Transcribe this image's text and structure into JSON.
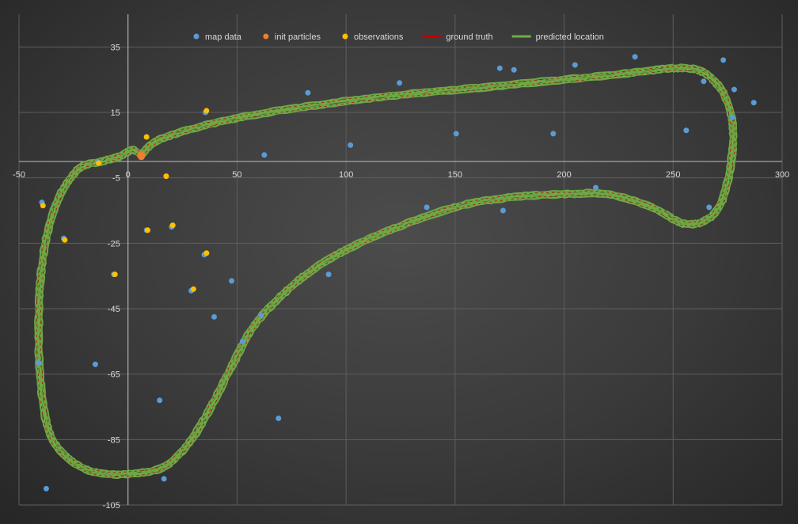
{
  "chart_data": {
    "type": "scatter",
    "title": "",
    "xlabel": "",
    "ylabel": "",
    "xlim": [
      -50,
      300
    ],
    "ylim": [
      -105,
      45
    ],
    "x_ticks": [
      -50,
      0,
      50,
      100,
      150,
      200,
      250,
      300
    ],
    "y_ticks": [
      35,
      15,
      -5,
      -25,
      -45,
      -65,
      -85,
      -105
    ],
    "grid": true,
    "legend_position": "top",
    "series": [
      {
        "name": "map data",
        "kind": "scatter",
        "color": "#5b9bd5",
        "points": [
          [
            -37.5,
            -100.0
          ],
          [
            -41.0,
            -61.5
          ],
          [
            -15.0,
            -62.0
          ],
          [
            -39.5,
            -12.5
          ],
          [
            -29.5,
            -23.5
          ],
          [
            -6.5,
            -34.5
          ],
          [
            8.5,
            -21.0
          ],
          [
            20.0,
            -20.0
          ],
          [
            14.5,
            -73.0
          ],
          [
            16.5,
            -97.0
          ],
          [
            29.0,
            -39.5
          ],
          [
            35.0,
            -28.5
          ],
          [
            39.5,
            -47.5
          ],
          [
            47.5,
            -36.5
          ],
          [
            52.5,
            -55.0
          ],
          [
            61.0,
            -47.0
          ],
          [
            62.5,
            2.0
          ],
          [
            69.0,
            -78.5
          ],
          [
            35.5,
            15.0
          ],
          [
            82.5,
            21.0
          ],
          [
            102.0,
            5.0
          ],
          [
            92.0,
            -34.5
          ],
          [
            124.5,
            24.0
          ],
          [
            137.0,
            -14.0
          ],
          [
            150.5,
            8.5
          ],
          [
            170.5,
            28.5
          ],
          [
            172.0,
            -15.0
          ],
          [
            177.0,
            28.0
          ],
          [
            195.0,
            8.5
          ],
          [
            205.0,
            29.5
          ],
          [
            214.5,
            -8.0
          ],
          [
            232.5,
            32.0
          ],
          [
            256.0,
            9.5
          ],
          [
            264.0,
            24.5
          ],
          [
            266.5,
            -14.0
          ],
          [
            273.0,
            31.0
          ],
          [
            277.0,
            13.5
          ],
          [
            278.0,
            22.0
          ],
          [
            287.0,
            18.0
          ],
          [
            -14.0,
            0.0
          ]
        ]
      },
      {
        "name": "init particles",
        "kind": "scatter",
        "color": "#ed7d31",
        "points": [
          [
            6.0,
            2.0
          ],
          [
            6.3,
            1.8
          ],
          [
            6.1,
            1.5
          ]
        ]
      },
      {
        "name": "observations",
        "kind": "scatter",
        "color": "#ffc000",
        "points": [
          [
            -39.0,
            -13.5
          ],
          [
            -29.0,
            -24.0
          ],
          [
            -13.5,
            -0.5
          ],
          [
            -6.0,
            -34.5
          ],
          [
            8.5,
            7.5
          ],
          [
            9.0,
            -21.0
          ],
          [
            20.5,
            -19.5
          ],
          [
            17.5,
            -4.5
          ],
          [
            30.0,
            -39.0
          ],
          [
            36.0,
            -28.0
          ],
          [
            36.0,
            15.5
          ]
        ]
      },
      {
        "name": "ground truth",
        "kind": "line",
        "color": "#c00000",
        "points": [
          [
            6.0,
            2.0
          ],
          [
            14.0,
            6.5
          ],
          [
            35.0,
            11.0
          ],
          [
            60.0,
            14.5
          ],
          [
            90.0,
            17.5
          ],
          [
            120.0,
            20.0
          ],
          [
            160.0,
            22.5
          ],
          [
            200.0,
            25.0
          ],
          [
            230.0,
            27.0
          ],
          [
            250.0,
            28.5
          ],
          [
            263.0,
            27.5
          ],
          [
            272.0,
            22.0
          ],
          [
            277.0,
            13.0
          ],
          [
            277.0,
            2.0
          ],
          [
            273.0,
            -11.0
          ],
          [
            266.0,
            -17.5
          ],
          [
            255.0,
            -19.0
          ],
          [
            240.0,
            -14.0
          ],
          [
            220.0,
            -10.0
          ],
          [
            200.0,
            -10.0
          ],
          [
            175.0,
            -11.0
          ],
          [
            150.0,
            -14.0
          ],
          [
            120.0,
            -21.0
          ],
          [
            100.0,
            -27.0
          ],
          [
            85.0,
            -33.0
          ],
          [
            72.0,
            -40.0
          ],
          [
            58.0,
            -50.0
          ],
          [
            48.0,
            -62.0
          ],
          [
            38.0,
            -75.0
          ],
          [
            28.0,
            -86.0
          ],
          [
            16.0,
            -93.5
          ],
          [
            0.0,
            -95.5
          ],
          [
            -15.0,
            -95.0
          ],
          [
            -27.0,
            -91.0
          ],
          [
            -36.0,
            -83.0
          ],
          [
            -40.0,
            -68.0
          ],
          [
            -41.0,
            -50.0
          ],
          [
            -40.0,
            -35.0
          ],
          [
            -37.0,
            -22.0
          ],
          [
            -31.0,
            -10.0
          ],
          [
            -22.0,
            -2.0
          ],
          [
            -12.0,
            0.0
          ],
          [
            -4.0,
            1.5
          ],
          [
            2.0,
            3.5
          ],
          [
            6.0,
            2.0
          ]
        ]
      },
      {
        "name": "predicted location",
        "kind": "line",
        "color": "#70ad47",
        "points": [
          [
            6.0,
            2.0
          ],
          [
            14.0,
            6.5
          ],
          [
            35.0,
            11.0
          ],
          [
            60.0,
            14.5
          ],
          [
            90.0,
            17.5
          ],
          [
            120.0,
            20.0
          ],
          [
            160.0,
            22.5
          ],
          [
            200.0,
            25.0
          ],
          [
            230.0,
            27.0
          ],
          [
            250.0,
            28.5
          ],
          [
            263.0,
            27.5
          ],
          [
            272.0,
            22.0
          ],
          [
            277.0,
            13.0
          ],
          [
            277.0,
            2.0
          ],
          [
            273.0,
            -11.0
          ],
          [
            266.0,
            -17.5
          ],
          [
            255.0,
            -19.0
          ],
          [
            240.0,
            -14.0
          ],
          [
            220.0,
            -10.0
          ],
          [
            200.0,
            -10.0
          ],
          [
            175.0,
            -11.0
          ],
          [
            150.0,
            -14.0
          ],
          [
            120.0,
            -21.0
          ],
          [
            100.0,
            -27.0
          ],
          [
            85.0,
            -33.0
          ],
          [
            72.0,
            -40.0
          ],
          [
            58.0,
            -50.0
          ],
          [
            48.0,
            -62.0
          ],
          [
            38.0,
            -75.0
          ],
          [
            28.0,
            -86.0
          ],
          [
            16.0,
            -93.5
          ],
          [
            0.0,
            -95.5
          ],
          [
            -15.0,
            -95.0
          ],
          [
            -27.0,
            -91.0
          ],
          [
            -36.0,
            -83.0
          ],
          [
            -40.0,
            -68.0
          ],
          [
            -41.0,
            -50.0
          ],
          [
            -40.0,
            -35.0
          ],
          [
            -37.0,
            -22.0
          ],
          [
            -31.0,
            -10.0
          ],
          [
            -22.0,
            -2.0
          ],
          [
            -12.0,
            0.0
          ],
          [
            -4.0,
            1.5
          ],
          [
            2.0,
            3.5
          ],
          [
            6.0,
            2.0
          ]
        ]
      }
    ]
  }
}
